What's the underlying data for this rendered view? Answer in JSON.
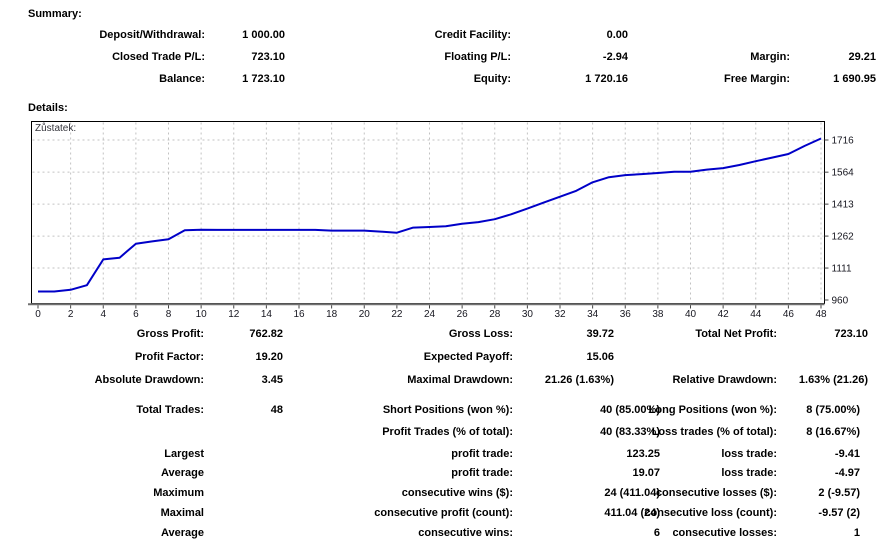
{
  "summary": {
    "heading": "Summary:",
    "rows": [
      {
        "c1_label": "Deposit/Withdrawal:",
        "c1_value": "1 000.00",
        "c2_label": "Credit Facility:",
        "c2_value": "0.00",
        "c3_label": "",
        "c3_value": ""
      },
      {
        "c1_label": "Closed Trade P/L:",
        "c1_value": "723.10",
        "c2_label": "Floating P/L:",
        "c2_value": "-2.94",
        "c3_label": "Margin:",
        "c3_value": "29.21"
      },
      {
        "c1_label": "Balance:",
        "c1_value": "1 723.10",
        "c2_label": "Equity:",
        "c2_value": "1 720.16",
        "c3_label": "Free Margin:",
        "c3_value": "1 690.95"
      }
    ]
  },
  "details": {
    "heading": "Details:",
    "stats_rows": [
      {
        "c1_label": "Gross Profit:",
        "c1_value": "762.82",
        "c2_label": "Gross Loss:",
        "c2_value": "39.72",
        "c3_label": "Total Net Profit:",
        "c3_value": "723.10"
      },
      {
        "c1_label": "Profit Factor:",
        "c1_value": "19.20",
        "c2_label": "Expected Payoff:",
        "c2_value": "15.06",
        "c3_label": "",
        "c3_value": ""
      },
      {
        "c1_label": "Absolute Drawdown:",
        "c1_value": "3.45",
        "c2_label": "Maximal Drawdown:",
        "c2_value": "21.26 (1.63%)",
        "c3_label": "Relative Drawdown:",
        "c3_value": "1.63% (21.26)"
      }
    ],
    "trade_rows": [
      {
        "c1_label": "Total Trades:",
        "c1_value": "48",
        "c2_label": "Short Positions (won %):",
        "c2_value": "40 (85.00%)",
        "c3_label": "Long Positions (won %):",
        "c3_value": "8 (75.00%)"
      },
      {
        "c1_label": "",
        "c1_value": "",
        "c2_label": "Profit Trades (% of total):",
        "c2_value": "40 (83.33%)",
        "c3_label": "Loss trades (% of total):",
        "c3_value": "8 (16.67%)"
      },
      {
        "c1_label": "Largest",
        "c1_value": "",
        "c2_label": "profit trade:",
        "c2_value": "123.25",
        "c3_label": "loss trade:",
        "c3_value": "-9.41"
      },
      {
        "c1_label": "Average",
        "c1_value": "",
        "c2_label": "profit trade:",
        "c2_value": "19.07",
        "c3_label": "loss trade:",
        "c3_value": "-4.97"
      },
      {
        "c1_label": "Maximum",
        "c1_value": "",
        "c2_label": "consecutive wins ($):",
        "c2_value": "24 (411.04)",
        "c3_label": "consecutive losses ($):",
        "c3_value": "2 (-9.57)"
      },
      {
        "c1_label": "Maximal",
        "c1_value": "",
        "c2_label": "consecutive profit (count):",
        "c2_value": "411.04 (24)",
        "c3_label": "consecutive loss (count):",
        "c3_value": "-9.57 (2)"
      },
      {
        "c1_label": "Average",
        "c1_value": "",
        "c2_label": "consecutive wins:",
        "c2_value": "6",
        "c3_label": "consecutive losses:",
        "c3_value": "1"
      }
    ]
  },
  "chart_data": {
    "type": "line",
    "title": "Zůstatek:",
    "xlabel": "",
    "ylabel": "",
    "x": [
      0,
      1,
      2,
      3,
      4,
      5,
      6,
      7,
      8,
      9,
      10,
      11,
      12,
      13,
      14,
      15,
      16,
      17,
      18,
      19,
      20,
      21,
      22,
      23,
      24,
      25,
      26,
      27,
      28,
      29,
      30,
      31,
      32,
      33,
      34,
      35,
      36,
      37,
      38,
      39,
      40,
      41,
      42,
      43,
      44,
      45,
      46,
      47,
      48
    ],
    "series": [
      {
        "name": "Zůstatek",
        "values": [
          1000,
          1000,
          1008,
          1030,
          1152,
          1160,
          1226,
          1237,
          1247,
          1290,
          1292,
          1291,
          1291,
          1291,
          1291,
          1291,
          1291,
          1291,
          1288,
          1288,
          1288,
          1283,
          1278,
          1302,
          1305,
          1308,
          1320,
          1328,
          1342,
          1365,
          1392,
          1420,
          1448,
          1476,
          1516,
          1540,
          1550,
          1555,
          1560,
          1566,
          1566,
          1576,
          1583,
          1598,
          1616,
          1633,
          1650,
          1688,
          1723
        ]
      }
    ],
    "x_ticks": [
      0,
      2,
      4,
      6,
      8,
      10,
      12,
      14,
      16,
      18,
      20,
      22,
      24,
      26,
      28,
      30,
      32,
      34,
      36,
      38,
      40,
      42,
      44,
      46,
      48
    ],
    "y_ticks": [
      960,
      1111,
      1262,
      1413,
      1564,
      1716
    ],
    "xlim": [
      -0.4,
      48.2
    ],
    "ylim": [
      946,
      1806
    ],
    "grid": true,
    "legend_position": "none",
    "line_color": "#0000C8",
    "grid_color": "#C2C2C2",
    "frame_color": "#000000",
    "axis_color": "#707070"
  }
}
